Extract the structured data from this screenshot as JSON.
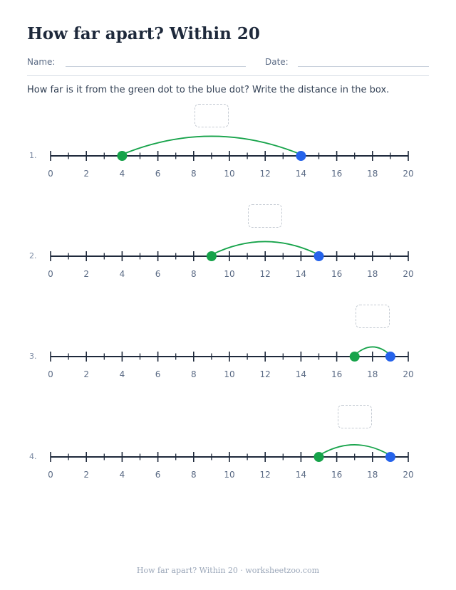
{
  "header": {
    "title": "How far apart? Within 20",
    "name_label": "Name:",
    "date_label": "Date:"
  },
  "instructions": "How far is it from the green dot to the blue dot? Write the distance in the box.",
  "number_line": {
    "min": 0,
    "max": 20,
    "label_step": 2,
    "tick_labels": [
      "0",
      "2",
      "4",
      "6",
      "8",
      "10",
      "12",
      "14",
      "16",
      "18",
      "20"
    ]
  },
  "problems": [
    {
      "number": "1.",
      "green": 4,
      "blue": 14
    },
    {
      "number": "2.",
      "green": 9,
      "blue": 15
    },
    {
      "number": "3.",
      "green": 17,
      "blue": 19
    },
    {
      "number": "4.",
      "green": 15,
      "blue": 19
    }
  ],
  "colors": {
    "green_dot": "#16a34a",
    "blue_dot": "#2563eb",
    "arc": "#16a34a",
    "line": "#1e293b",
    "tick_label": "#5b6b85"
  },
  "footer": "How far apart? Within 20 · worksheetzoo.com"
}
